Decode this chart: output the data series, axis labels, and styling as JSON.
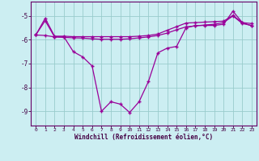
{
  "xlabel": "Windchill (Refroidissement éolien,°C)",
  "bg_color": "#cceef2",
  "line_color": "#990099",
  "grid_color": "#99cccc",
  "spine_color": "#660066",
  "tick_color": "#440044",
  "xlim": [
    -0.5,
    23.5
  ],
  "ylim": [
    -9.6,
    -4.4
  ],
  "yticks": [
    -9,
    -8,
    -7,
    -6,
    -5
  ],
  "xticks": [
    0,
    1,
    2,
    3,
    4,
    5,
    6,
    7,
    8,
    9,
    10,
    11,
    12,
    13,
    14,
    15,
    16,
    17,
    18,
    19,
    20,
    21,
    22,
    23
  ],
  "line1_x": [
    0,
    1,
    2,
    3,
    4,
    5,
    6,
    7,
    8,
    9,
    10,
    11,
    12,
    13,
    14,
    15,
    16,
    17,
    18,
    19,
    20,
    21,
    22,
    23
  ],
  "line1_y": [
    -5.8,
    -5.1,
    -5.85,
    -5.85,
    -5.87,
    -5.87,
    -5.87,
    -5.87,
    -5.87,
    -5.87,
    -5.87,
    -5.85,
    -5.82,
    -5.76,
    -5.6,
    -5.45,
    -5.3,
    -5.28,
    -5.26,
    -5.24,
    -5.22,
    -4.98,
    -5.28,
    -5.32
  ],
  "line2_x": [
    0,
    1,
    2,
    3,
    4,
    5,
    6,
    7,
    8,
    9,
    10,
    11,
    12,
    13,
    14,
    15,
    16,
    17,
    18,
    19,
    20,
    21,
    22,
    23
  ],
  "line2_y": [
    -5.8,
    -5.82,
    -5.88,
    -5.9,
    -5.92,
    -5.93,
    -5.96,
    -5.98,
    -5.98,
    -5.98,
    -5.96,
    -5.92,
    -5.88,
    -5.82,
    -5.72,
    -5.58,
    -5.46,
    -5.42,
    -5.38,
    -5.35,
    -5.28,
    -5.0,
    -5.32,
    -5.4
  ],
  "line3_x": [
    0,
    1,
    2,
    3,
    4,
    5,
    6,
    7,
    8,
    9,
    10,
    11,
    12,
    13,
    14,
    15,
    16,
    17,
    18,
    19,
    20,
    21,
    22,
    23
  ],
  "line3_y": [
    -5.8,
    -5.2,
    -5.88,
    -5.88,
    -6.5,
    -6.72,
    -7.1,
    -9.0,
    -8.6,
    -8.7,
    -9.05,
    -8.6,
    -7.75,
    -6.55,
    -6.35,
    -6.28,
    -5.5,
    -5.4,
    -5.4,
    -5.4,
    -5.35,
    -4.8,
    -5.28,
    -5.42
  ]
}
